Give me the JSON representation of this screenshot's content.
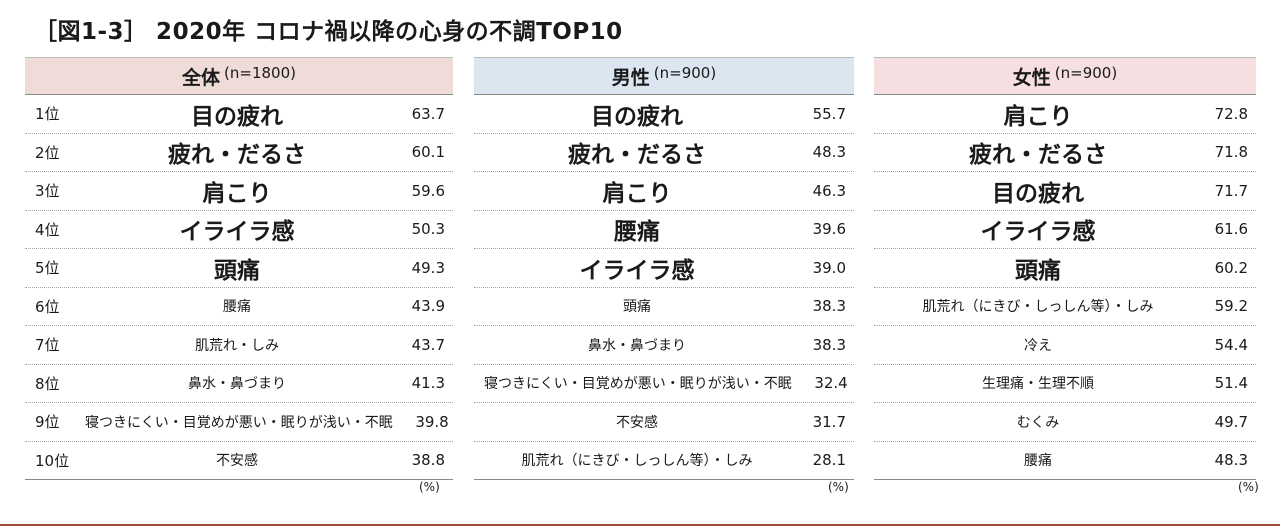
{
  "title": "［図1-3］ 2020年 コロナ禍以降の心身の不調TOP10",
  "unit_note": "(%)",
  "colors": {
    "all_header": "#efdcd9",
    "male_header": "#dce6f1",
    "female_header": "#f6dfe0",
    "footer_line": "#a04a3c"
  },
  "chart_data": {
    "type": "table",
    "title": "［図1-3］ 2020年 コロナ禍以降の心身の不調TOP10",
    "unit": "(%)",
    "tables": [
      {
        "name": "全体",
        "n": "(n=1800)",
        "rows": [
          {
            "rank": "1位",
            "item": "目の疲れ",
            "value": "63.7"
          },
          {
            "rank": "2位",
            "item": "疲れ・だるさ",
            "value": "60.1"
          },
          {
            "rank": "3位",
            "item": "肩こり",
            "value": "59.6"
          },
          {
            "rank": "4位",
            "item": "イライラ感",
            "value": "50.3"
          },
          {
            "rank": "5位",
            "item": "頭痛",
            "value": "49.3"
          },
          {
            "rank": "6位",
            "item": "腰痛",
            "value": "43.9"
          },
          {
            "rank": "7位",
            "item": "肌荒れ・しみ",
            "value": "43.7"
          },
          {
            "rank": "8位",
            "item": "鼻水・鼻づまり",
            "value": "41.3"
          },
          {
            "rank": "9位",
            "item": "寝つきにくい・目覚めが悪い・眠りが浅い・不眠",
            "value": "39.8"
          },
          {
            "rank": "10位",
            "item": "不安感",
            "value": "38.8"
          }
        ]
      },
      {
        "name": "男性",
        "n": "(n=900)",
        "rows": [
          {
            "item": "目の疲れ",
            "value": "55.7"
          },
          {
            "item": "疲れ・だるさ",
            "value": "48.3"
          },
          {
            "item": "肩こり",
            "value": "46.3"
          },
          {
            "item": "腰痛",
            "value": "39.6"
          },
          {
            "item": "イライラ感",
            "value": "39.0"
          },
          {
            "item": "頭痛",
            "value": "38.3"
          },
          {
            "item": "鼻水・鼻づまり",
            "value": "38.3"
          },
          {
            "item": "寝つきにくい・目覚めが悪い・眠りが浅い・不眠",
            "value": "32.4"
          },
          {
            "item": "不安感",
            "value": "31.7"
          },
          {
            "item": "肌荒れ（にきび・しっしん等）・しみ",
            "value": "28.1"
          }
        ]
      },
      {
        "name": "女性",
        "n": "(n=900)",
        "rows": [
          {
            "item": "肩こり",
            "value": "72.8"
          },
          {
            "item": "疲れ・だるさ",
            "value": "71.8"
          },
          {
            "item": "目の疲れ",
            "value": "71.7"
          },
          {
            "item": "イライラ感",
            "value": "61.6"
          },
          {
            "item": "頭痛",
            "value": "60.2"
          },
          {
            "item": "肌荒れ（にきび・しっしん等）・しみ",
            "value": "59.2"
          },
          {
            "item": "冷え",
            "value": "54.4"
          },
          {
            "item": "生理痛・生理不順",
            "value": "51.4"
          },
          {
            "item": "むくみ",
            "value": "49.7"
          },
          {
            "item": "腰痛",
            "value": "48.3"
          }
        ]
      }
    ]
  }
}
